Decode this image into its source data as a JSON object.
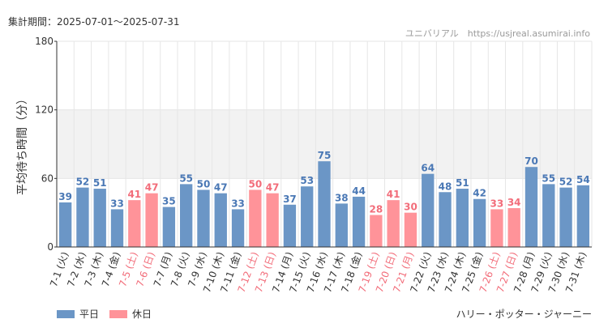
{
  "header": {
    "period_text": "集計期間：2025-07-01～2025-07-31",
    "credit_text": "ユニバリアル　https://usjreal.asumirai.info"
  },
  "footer": {
    "attraction_name": "ハリー・ポッター・ジャーニー"
  },
  "legend": {
    "weekday_label": "平日",
    "holiday_label": "休日"
  },
  "colors": {
    "weekday": "#6b96c6",
    "holiday": "#ff9399",
    "weekday_label": "#4a78b5",
    "holiday_label": "#f26d7a",
    "band": "#f2f2f2",
    "grid": "#e6e6e6"
  },
  "chart_data": {
    "type": "bar",
    "ylabel": "平均待ち時間（分）",
    "xlabel": "",
    "ylim": [
      0,
      180
    ],
    "yticks": [
      0,
      60,
      120,
      180
    ],
    "highlight_band": [
      60,
      120
    ],
    "grid": true,
    "legend_position": "bottom-left",
    "categories": [
      "7-1 (火)",
      "7-2 (水)",
      "7-3 (木)",
      "7-4 (金)",
      "7-5 (土)",
      "7-6 (日)",
      "7-7 (月)",
      "7-8 (火)",
      "7-9 (水)",
      "7-10 (木)",
      "7-11 (金)",
      "7-12 (土)",
      "7-13 (日)",
      "7-14 (月)",
      "7-15 (火)",
      "7-16 (水)",
      "7-17 (木)",
      "7-18 (金)",
      "7-19 (土)",
      "7-20 (日)",
      "7-21 (月)",
      "7-22 (火)",
      "7-23 (水)",
      "7-24 (木)",
      "7-25 (金)",
      "7-26 (土)",
      "7-27 (日)",
      "7-28 (月)",
      "7-29 (火)",
      "7-30 (水)",
      "7-31 (木)"
    ],
    "values": [
      39,
      52,
      51,
      33,
      41,
      47,
      35,
      55,
      50,
      47,
      33,
      50,
      47,
      37,
      53,
      75,
      38,
      44,
      28,
      41,
      30,
      64,
      48,
      51,
      42,
      33,
      34,
      70,
      55,
      52,
      54
    ],
    "day_type": [
      "平日",
      "平日",
      "平日",
      "平日",
      "休日",
      "休日",
      "平日",
      "平日",
      "平日",
      "平日",
      "平日",
      "休日",
      "休日",
      "平日",
      "平日",
      "平日",
      "平日",
      "平日",
      "休日",
      "休日",
      "休日",
      "平日",
      "平日",
      "平日",
      "平日",
      "休日",
      "休日",
      "平日",
      "平日",
      "平日",
      "平日"
    ]
  }
}
